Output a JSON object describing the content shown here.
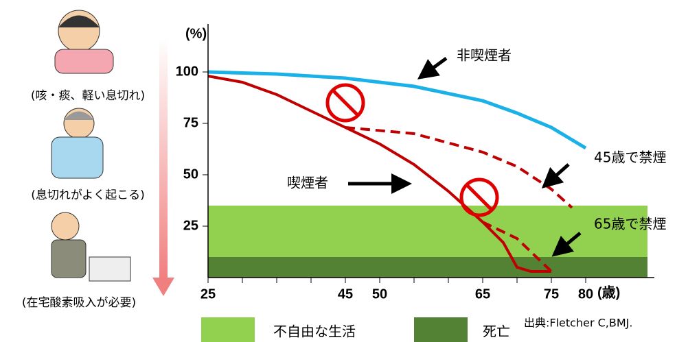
{
  "chart_data": {
    "type": "line",
    "y_label": "(%)",
    "x_label": "(歳)",
    "xlim": [
      25,
      90
    ],
    "ylim": [
      0,
      120
    ],
    "xticks": [
      25,
      45,
      50,
      65,
      75,
      80
    ],
    "xminorticks": [
      30,
      35,
      40,
      55,
      60,
      70
    ],
    "yticks": [
      25,
      50,
      75,
      100
    ],
    "bands": [
      {
        "name": "不自由な生活",
        "color": "#92d050",
        "range": [
          0,
          35
        ]
      },
      {
        "name": "死亡",
        "color": "#548235",
        "range": [
          0,
          10
        ]
      }
    ],
    "series": [
      {
        "name": "非喫煙者",
        "color": "#1ab0e8",
        "dashed": false,
        "x": [
          25,
          35,
          45,
          55,
          65,
          70,
          75,
          80
        ],
        "values": [
          100,
          99,
          97,
          93,
          86,
          80,
          73,
          63
        ]
      },
      {
        "name": "喫煙者",
        "color": "#c00000",
        "dashed": false,
        "x": [
          25,
          30,
          35,
          40,
          45,
          50,
          55,
          60,
          65,
          68,
          70,
          72,
          75
        ],
        "values": [
          98,
          95,
          89,
          81,
          73,
          65,
          55,
          42,
          27,
          17,
          5,
          3,
          3
        ]
      },
      {
        "name": "45歳で禁煙",
        "color": "#c00000",
        "dashed": true,
        "x": [
          45,
          55,
          65,
          70,
          75,
          78
        ],
        "values": [
          73,
          70,
          61,
          54,
          43,
          34
        ]
      },
      {
        "name": "65歳で禁煙",
        "color": "#c00000",
        "dashed": true,
        "x": [
          65,
          70,
          75
        ],
        "values": [
          27,
          19,
          3
        ]
      }
    ],
    "stages": [
      "(咳・痰、軽い息切れ)",
      "(息切れがよく起こる)",
      "(在宅酸素吸入が必要)"
    ],
    "source": "出典:Fletcher C,BMJ."
  }
}
